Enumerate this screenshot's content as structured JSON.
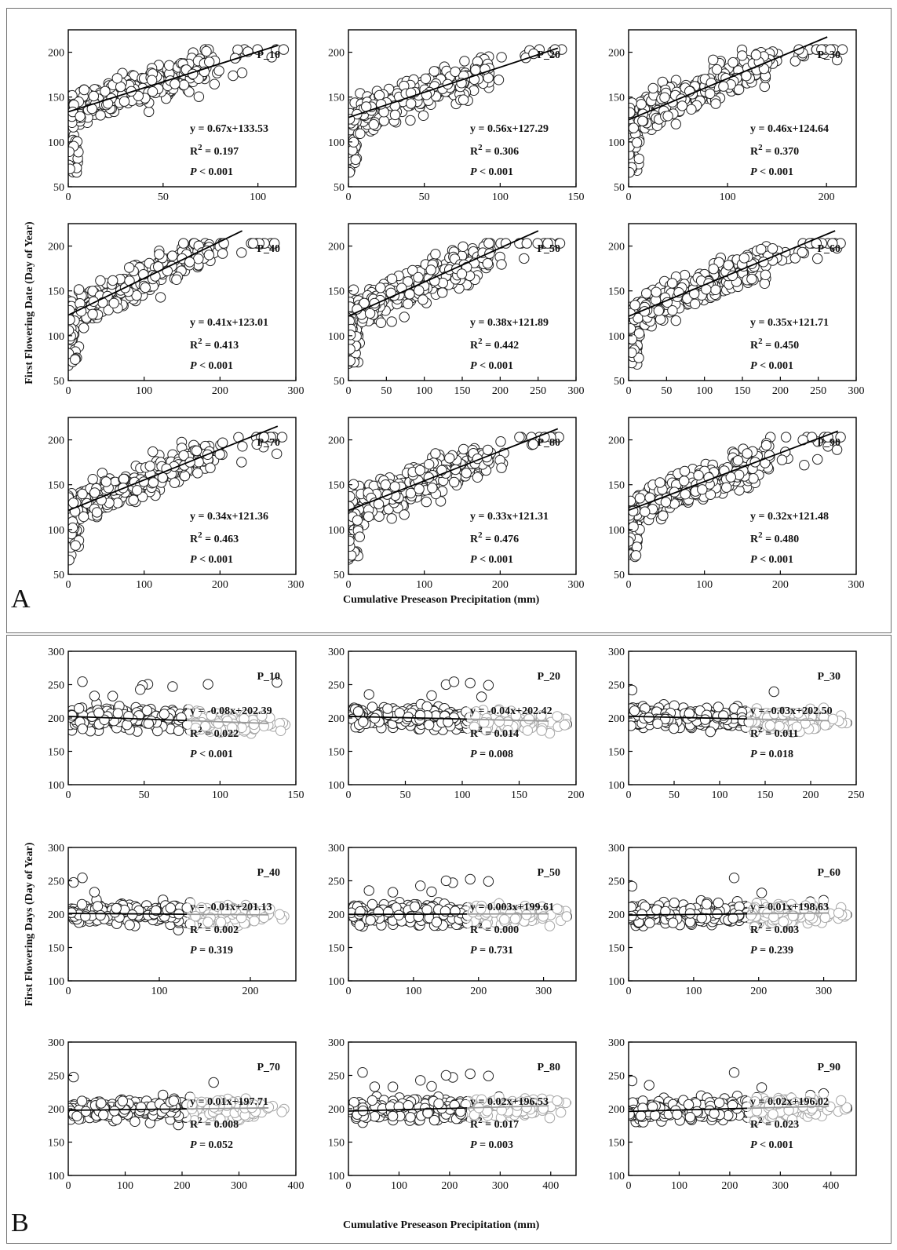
{
  "panels": [
    {
      "letter": "A",
      "ylabel": "First Flowering Date (Day of Year)",
      "xlabel": "Cumulative Preseason Precipitation (mm)"
    },
    {
      "letter": "B",
      "ylabel": "First Flowering Days (Day of Year)",
      "xlabel": "Cumulative Preseason Precipitation (mm)"
    }
  ],
  "chart_data": [
    {
      "type": "scatter",
      "panel": "A",
      "title": "P_10",
      "equation": "y = 0.67x+133.53",
      "r2": "0.197",
      "p": "< 0.001",
      "slope": 0.67,
      "intercept": 133.53,
      "xlim": [
        0,
        120
      ],
      "ylim": [
        50,
        225
      ],
      "xticks": [
        0,
        50,
        100
      ],
      "yticks": [
        50,
        100,
        150,
        200
      ]
    },
    {
      "type": "scatter",
      "panel": "A",
      "title": "P_20",
      "equation": "y = 0.56x+127.29",
      "r2": "0.306",
      "p": "< 0.001",
      "slope": 0.56,
      "intercept": 127.29,
      "xlim": [
        0,
        150
      ],
      "ylim": [
        50,
        225
      ],
      "xticks": [
        0,
        50,
        100,
        150
      ],
      "yticks": [
        50,
        100,
        150,
        200
      ]
    },
    {
      "type": "scatter",
      "panel": "A",
      "title": "P_30",
      "equation": "y = 0.46x+124.64",
      "r2": "0.370",
      "p": "< 0.001",
      "slope": 0.46,
      "intercept": 124.64,
      "xlim": [
        0,
        230
      ],
      "ylim": [
        50,
        225
      ],
      "xticks": [
        0,
        100,
        200
      ],
      "yticks": [
        50,
        100,
        150,
        200
      ]
    },
    {
      "type": "scatter",
      "panel": "A",
      "title": "P_40",
      "equation": "y = 0.41x+123.01",
      "r2": "0.413",
      "p": "< 0.001",
      "slope": 0.41,
      "intercept": 123.01,
      "xlim": [
        0,
        300
      ],
      "ylim": [
        50,
        225
      ],
      "xticks": [
        0,
        100,
        200,
        300
      ],
      "yticks": [
        50,
        100,
        150,
        200
      ]
    },
    {
      "type": "scatter",
      "panel": "A",
      "title": "P_50",
      "equation": "y = 0.38x+121.89",
      "r2": "0.442",
      "p": "< 0.001",
      "slope": 0.38,
      "intercept": 121.89,
      "xlim": [
        0,
        300
      ],
      "ylim": [
        50,
        225
      ],
      "xticks": [
        0,
        50,
        100,
        150,
        200,
        250,
        300
      ],
      "yticks": [
        50,
        100,
        150,
        200
      ]
    },
    {
      "type": "scatter",
      "panel": "A",
      "title": "P_60",
      "equation": "y = 0.35x+121.71",
      "r2": "0.450",
      "p": "< 0.001",
      "slope": 0.35,
      "intercept": 121.71,
      "xlim": [
        0,
        300
      ],
      "ylim": [
        50,
        225
      ],
      "xticks": [
        0,
        50,
        100,
        150,
        200,
        250,
        300
      ],
      "yticks": [
        50,
        100,
        150,
        200
      ]
    },
    {
      "type": "scatter",
      "panel": "A",
      "title": "P_70",
      "equation": "y = 0.34x+121.36",
      "r2": "0.463",
      "p": "< 0.001",
      "slope": 0.34,
      "intercept": 121.36,
      "xlim": [
        0,
        300
      ],
      "ylim": [
        50,
        225
      ],
      "xticks": [
        0,
        100,
        200,
        300
      ],
      "yticks": [
        50,
        100,
        150,
        200
      ]
    },
    {
      "type": "scatter",
      "panel": "A",
      "title": "P_80",
      "equation": "y = 0.33x+121.31",
      "r2": "0.476",
      "p": "< 0.001",
      "slope": 0.33,
      "intercept": 121.31,
      "xlim": [
        0,
        300
      ],
      "ylim": [
        50,
        225
      ],
      "xticks": [
        0,
        100,
        200,
        300
      ],
      "yticks": [
        50,
        100,
        150,
        200
      ]
    },
    {
      "type": "scatter",
      "panel": "A",
      "title": "P_90",
      "equation": "y = 0.32x+121.48",
      "r2": "0.480",
      "p": "< 0.001",
      "slope": 0.32,
      "intercept": 121.48,
      "xlim": [
        0,
        300
      ],
      "ylim": [
        50,
        225
      ],
      "xticks": [
        0,
        100,
        200,
        300
      ],
      "yticks": [
        50,
        100,
        150,
        200
      ]
    },
    {
      "type": "scatter",
      "panel": "B",
      "title": "P_10",
      "equation": "y = -0.08x+202.39",
      "r2": "0.022",
      "p": "< 0.001",
      "slope": -0.08,
      "intercept": 202.39,
      "xlim": [
        0,
        150
      ],
      "ylim": [
        100,
        300
      ],
      "xticks": [
        0,
        50,
        100,
        150
      ],
      "yticks": [
        100,
        150,
        200,
        250,
        300
      ]
    },
    {
      "type": "scatter",
      "panel": "B",
      "title": "P_20",
      "equation": "y = -0.04x+202.42",
      "r2": "0.014",
      "p": "= 0.008",
      "slope": -0.04,
      "intercept": 202.42,
      "xlim": [
        0,
        200
      ],
      "ylim": [
        100,
        300
      ],
      "xticks": [
        0,
        50,
        100,
        150,
        200
      ],
      "yticks": [
        100,
        150,
        200,
        250,
        300
      ]
    },
    {
      "type": "scatter",
      "panel": "B",
      "title": "P_30",
      "equation": "y = -0.03x+202.50",
      "r2": "0.011",
      "p": "= 0.018",
      "slope": -0.03,
      "intercept": 202.5,
      "xlim": [
        0,
        250
      ],
      "ylim": [
        100,
        300
      ],
      "xticks": [
        0,
        50,
        100,
        150,
        200,
        250
      ],
      "yticks": [
        100,
        150,
        200,
        250,
        300
      ]
    },
    {
      "type": "scatter",
      "panel": "B",
      "title": "P_40",
      "equation": "y = -0.01x+201.13",
      "r2": "0.002",
      "p": "= 0.319",
      "slope": -0.01,
      "intercept": 201.13,
      "xlim": [
        0,
        250
      ],
      "ylim": [
        100,
        300
      ],
      "xticks": [
        0,
        100,
        200
      ],
      "yticks": [
        100,
        150,
        200,
        250,
        300
      ]
    },
    {
      "type": "scatter",
      "panel": "B",
      "title": "P_50",
      "equation": "y = 0.003x+199.61",
      "r2": "0.000",
      "p": "= 0.731",
      "slope": 0.003,
      "intercept": 199.61,
      "xlim": [
        0,
        350
      ],
      "ylim": [
        100,
        300
      ],
      "xticks": [
        0,
        100,
        200,
        300
      ],
      "yticks": [
        100,
        150,
        200,
        250,
        300
      ]
    },
    {
      "type": "scatter",
      "panel": "B",
      "title": "P_60",
      "equation": "y = 0.01x+198.63",
      "r2": "0.003",
      "p": "= 0.239",
      "slope": 0.01,
      "intercept": 198.63,
      "xlim": [
        0,
        350
      ],
      "ylim": [
        100,
        300
      ],
      "xticks": [
        0,
        100,
        200,
        300
      ],
      "yticks": [
        100,
        150,
        200,
        250,
        300
      ]
    },
    {
      "type": "scatter",
      "panel": "B",
      "title": "P_70",
      "equation": "y = 0.01x+197.71",
      "r2": "0.008",
      "p": "= 0.052",
      "slope": 0.01,
      "intercept": 197.71,
      "xlim": [
        0,
        400
      ],
      "ylim": [
        100,
        300
      ],
      "xticks": [
        0,
        100,
        200,
        300,
        400
      ],
      "yticks": [
        100,
        150,
        200,
        250,
        300
      ]
    },
    {
      "type": "scatter",
      "panel": "B",
      "title": "P_80",
      "equation": "y = 0.02x+196.53",
      "r2": "0.017",
      "p": "= 0.003",
      "slope": 0.02,
      "intercept": 196.53,
      "xlim": [
        0,
        450
      ],
      "ylim": [
        100,
        300
      ],
      "xticks": [
        0,
        100,
        200,
        300,
        400
      ],
      "yticks": [
        100,
        150,
        200,
        250,
        300
      ]
    },
    {
      "type": "scatter",
      "panel": "B",
      "title": "P_90",
      "equation": "y = 0.02x+196.02",
      "r2": "0.023",
      "p": "< 0.001",
      "slope": 0.02,
      "intercept": 196.02,
      "xlim": [
        0,
        450
      ],
      "ylim": [
        100,
        300
      ],
      "xticks": [
        0,
        100,
        200,
        300,
        400
      ],
      "yticks": [
        100,
        150,
        200,
        250,
        300
      ]
    }
  ]
}
